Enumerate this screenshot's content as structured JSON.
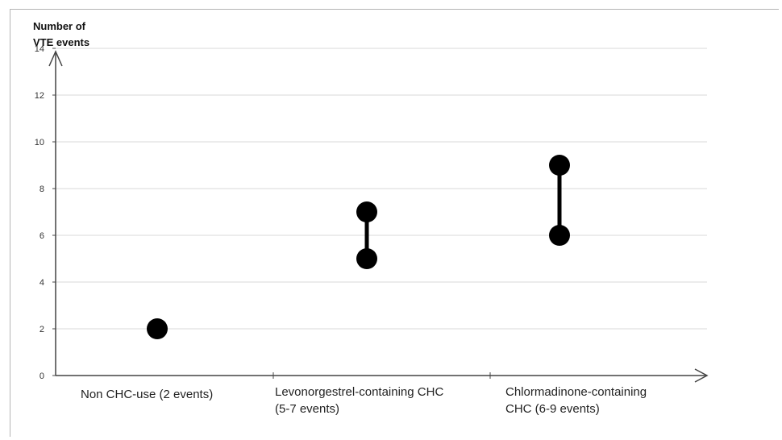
{
  "chart_data": {
    "type": "scatter",
    "ylabel": "Number of VTE events",
    "ylim": [
      0,
      14
    ],
    "yticks": [
      0,
      2,
      4,
      6,
      8,
      10,
      12,
      14
    ],
    "grid": true,
    "categories": [
      "Non CHC-use (2 events)",
      "Levonorgestrel-containing CHC (5-7 events)",
      "Chlormadinone-containing CHC (6-9 events)"
    ],
    "ranges": [
      {
        "category": "Non CHC-use (2 events)",
        "low": 2,
        "high": 2
      },
      {
        "category": "Levonorgestrel-containing CHC (5-7 events)",
        "low": 5,
        "high": 7
      },
      {
        "category": "Chlormadinone-containing CHC (6-9 events)",
        "low": 6,
        "high": 9
      }
    ]
  },
  "labels": {
    "ylabel_line1": "Number of",
    "ylabel_line2": "VTE events",
    "cat1_line1": "Non CHC-use (2 events)",
    "cat2_line1": "Levonorgestrel-containing CHC",
    "cat2_line2": "(5-7 events)",
    "cat3_line1": "Chlormadinone-containing",
    "cat3_line2": "CHC (6-9 events)"
  },
  "colors": {
    "marker": "#000000",
    "grid": "#d9d9d9",
    "axis": "#444444"
  }
}
